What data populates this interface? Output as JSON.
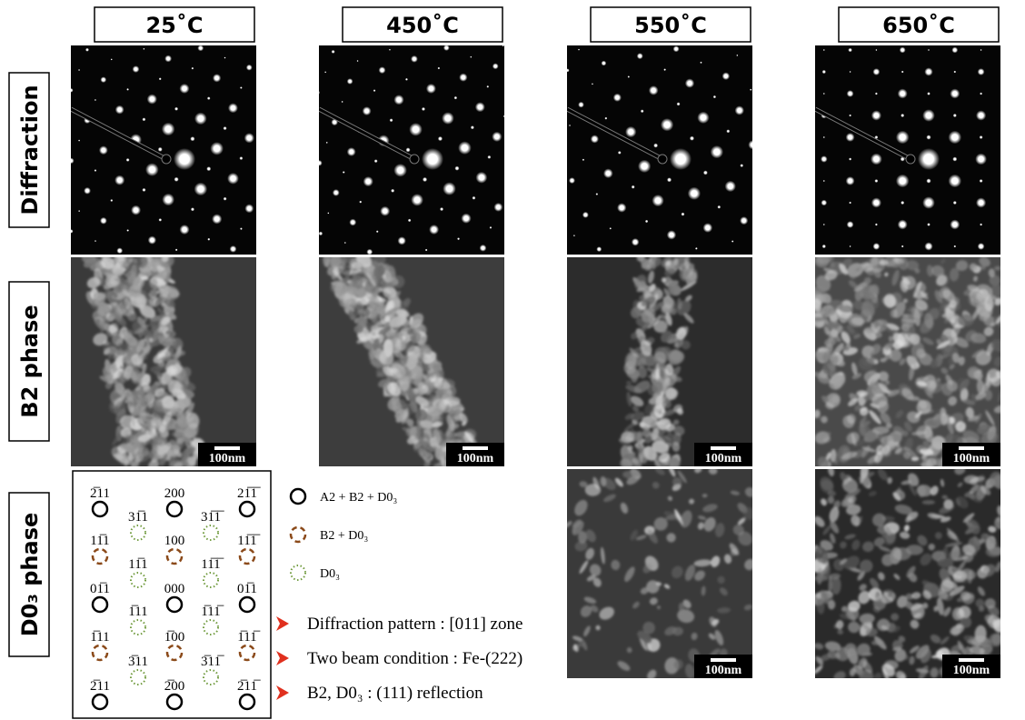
{
  "headers": [
    "25˚C",
    "450˚C",
    "550˚C",
    "650˚C"
  ],
  "row_labels": [
    "Diffraction",
    "B2 phase",
    "D0₃ phase"
  ],
  "scale_bars": [
    "100nm",
    "100nm",
    "100nm",
    "100nm",
    "100nm",
    "100nm"
  ],
  "diagram": {
    "main": [
      [
        "2̅11",
        "200",
        "21̅1̅"
      ],
      [
        "11̅1",
        "100",
        "11̅1̅"
      ],
      [
        "01̅1",
        "000",
        "01̅1"
      ],
      [
        "1̅11",
        "1̅00",
        "1̅11̅"
      ],
      [
        "2̅11",
        "2̅00",
        "2̅11̅"
      ]
    ],
    "minor": [
      [
        "31̅1",
        "31̅1̅"
      ],
      [
        "11̅1",
        "11̅1̅"
      ],
      [
        "1̅11",
        "1̅11̅"
      ],
      [
        "3̅11",
        "3̅11̅"
      ]
    ]
  },
  "legend": [
    "A2 + B2 + D0₃",
    "B2 + D0₃",
    "D0₃"
  ],
  "notes": [
    "Diffraction pattern : [011] zone",
    "Two beam condition : Fe-(222)",
    "B2, D0₃ : (111) reflection"
  ]
}
